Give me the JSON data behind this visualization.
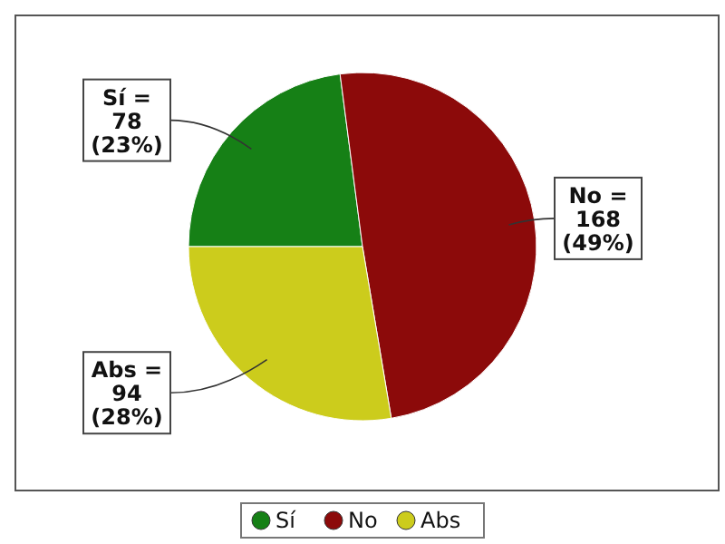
{
  "chart_data": {
    "type": "pie",
    "categories": [
      "Sí",
      "No",
      "Abs"
    ],
    "values": [
      78,
      168,
      94
    ],
    "colors": [
      "#168016",
      "#8c0a0a",
      "#cccc1c"
    ],
    "value_labels": [
      "Sí =\n78\n(23%)",
      "No =\n168\n(49%)",
      "Abs =\n94\n(28%)"
    ],
    "legend": "bottom"
  }
}
